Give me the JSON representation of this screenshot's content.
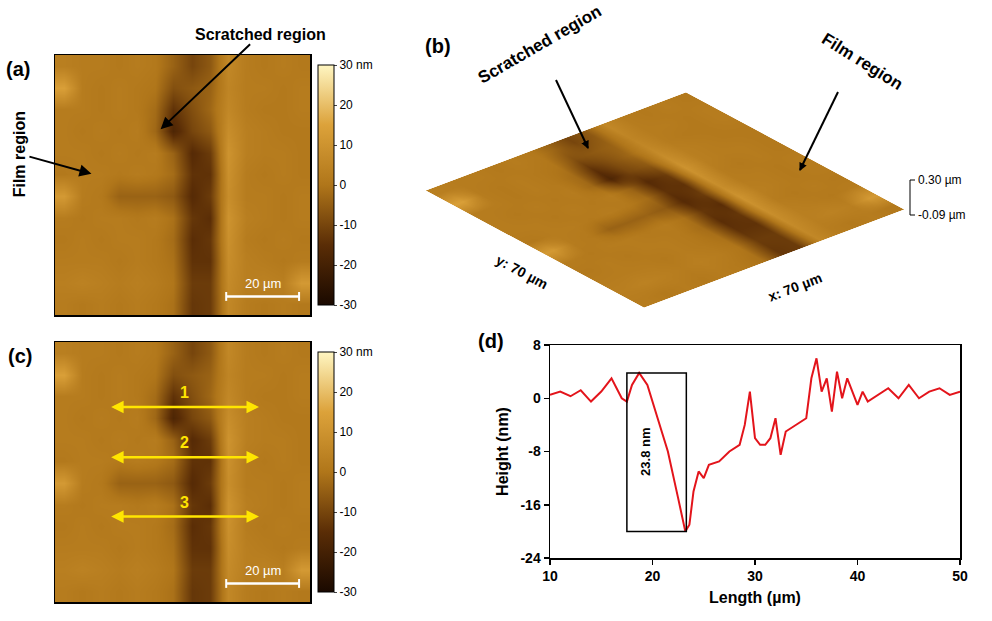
{
  "chart_data": [
    {
      "panel": "(a)",
      "type": "heatmap",
      "annotations": [
        "Scratched region",
        "Film region"
      ],
      "xlim": [
        0,
        70
      ],
      "ylim": [
        0,
        70
      ],
      "tick_labels": false,
      "zlim": [
        -30,
        30
      ],
      "zticks": [
        {
          "value": 30,
          "label": "30 nm"
        },
        20,
        10,
        0,
        -10,
        -20,
        -30
      ],
      "scale_bar": {
        "length": 20,
        "label": "20 µm"
      },
      "cells": [
        [
          3,
          2,
          2,
          1,
          2,
          1,
          -4,
          -10,
          -6,
          6,
          2,
          1,
          2,
          1
        ],
        [
          14,
          2,
          1,
          2,
          1,
          0,
          -8,
          -6,
          -4,
          5,
          2,
          2,
          1,
          2
        ],
        [
          2,
          2,
          1,
          2,
          1,
          -2,
          -14,
          -8,
          -3,
          6,
          2,
          1,
          1,
          2
        ],
        [
          2,
          1,
          2,
          1,
          2,
          -3,
          -18,
          -10,
          -6,
          8,
          3,
          2,
          1,
          1
        ],
        [
          2,
          2,
          1,
          2,
          1,
          2,
          -4,
          -16,
          -12,
          10,
          3,
          2,
          2,
          1
        ],
        [
          1,
          2,
          2,
          1,
          2,
          1,
          -2,
          -14,
          -14,
          9,
          2,
          1,
          2,
          1
        ],
        [
          12,
          2,
          1,
          -4,
          -4,
          -4,
          -6,
          -16,
          -12,
          8,
          2,
          2,
          1,
          2
        ],
        [
          2,
          1,
          2,
          2,
          1,
          2,
          -1,
          -13,
          -15,
          10,
          3,
          2,
          1,
          2
        ],
        [
          1,
          2,
          1,
          2,
          2,
          1,
          -2,
          -15,
          -13,
          9,
          2,
          1,
          2,
          1
        ],
        [
          2,
          2,
          2,
          1,
          2,
          1,
          -1,
          -14,
          -14,
          8,
          3,
          2,
          1,
          2
        ],
        [
          3,
          4,
          3,
          2,
          3,
          2,
          0,
          -12,
          -12,
          7,
          3,
          4,
          3,
          12
        ],
        [
          2,
          1,
          2,
          1,
          2,
          1,
          -1,
          -13,
          -12,
          6,
          2,
          1,
          2,
          1
        ]
      ]
    },
    {
      "panel": "(b)",
      "type": "surface",
      "annotations": [
        "Scratched region",
        "Film region"
      ],
      "x_label": "x: 70 µm",
      "y_label": "y: 70 µm",
      "color_range": [
        -30,
        30
      ],
      "zticks": [
        {
          "value": 0.3,
          "label": "0.30 µm"
        },
        {
          "value": -0.09,
          "label": "-0.09 µm"
        }
      ],
      "cells": [
        [
          3,
          2,
          2,
          1,
          2,
          1,
          -4,
          -10,
          -6,
          6,
          2,
          1,
          2,
          1
        ],
        [
          14,
          2,
          1,
          2,
          1,
          0,
          -8,
          -6,
          -4,
          5,
          2,
          2,
          1,
          2
        ],
        [
          2,
          2,
          1,
          2,
          1,
          -2,
          -14,
          -8,
          -3,
          6,
          2,
          1,
          1,
          2
        ],
        [
          2,
          1,
          2,
          1,
          2,
          -3,
          -18,
          -10,
          -6,
          8,
          3,
          2,
          1,
          1
        ],
        [
          2,
          2,
          1,
          2,
          1,
          2,
          -4,
          -16,
          -12,
          10,
          3,
          2,
          2,
          1
        ],
        [
          1,
          2,
          2,
          1,
          2,
          1,
          -2,
          -14,
          -14,
          9,
          2,
          1,
          2,
          1
        ],
        [
          12,
          2,
          1,
          -4,
          -4,
          -4,
          -6,
          -16,
          -12,
          8,
          2,
          2,
          1,
          2
        ],
        [
          2,
          1,
          2,
          2,
          1,
          2,
          -1,
          -13,
          -15,
          10,
          3,
          2,
          1,
          2
        ],
        [
          1,
          2,
          1,
          2,
          2,
          1,
          -2,
          -15,
          -13,
          9,
          2,
          1,
          2,
          1
        ],
        [
          2,
          2,
          2,
          1,
          2,
          1,
          -1,
          -14,
          -14,
          8,
          3,
          2,
          1,
          2
        ],
        [
          3,
          4,
          3,
          2,
          3,
          2,
          0,
          -12,
          -12,
          7,
          3,
          4,
          3,
          12
        ],
        [
          2,
          1,
          2,
          1,
          2,
          1,
          -1,
          -13,
          -12,
          6,
          2,
          1,
          2,
          1
        ]
      ]
    },
    {
      "panel": "(c)",
      "type": "heatmap",
      "xlim": [
        0,
        70
      ],
      "ylim": [
        0,
        70
      ],
      "tick_labels": false,
      "zlim": [
        -30,
        30
      ],
      "zticks": [
        {
          "value": 30,
          "label": "30 nm"
        },
        20,
        10,
        0,
        -10,
        -20,
        -30
      ],
      "scale_bar": {
        "length": 20,
        "label": "20 µm"
      },
      "profiles": [
        {
          "label": "1",
          "x": [
            15,
            56
          ],
          "y": 52.5
        },
        {
          "label": "2",
          "x": [
            15,
            56
          ],
          "y": 39
        },
        {
          "label": "3",
          "x": [
            15,
            56
          ],
          "y": 23
        }
      ],
      "cells": [
        [
          3,
          2,
          2,
          1,
          2,
          1,
          -4,
          -10,
          -6,
          6,
          2,
          1,
          2,
          1
        ],
        [
          14,
          2,
          1,
          2,
          1,
          0,
          -8,
          -6,
          -4,
          5,
          2,
          2,
          1,
          2
        ],
        [
          2,
          2,
          1,
          2,
          1,
          -2,
          -14,
          -8,
          -3,
          6,
          2,
          1,
          1,
          2
        ],
        [
          2,
          1,
          2,
          1,
          2,
          -3,
          -18,
          -10,
          -6,
          8,
          3,
          2,
          1,
          1
        ],
        [
          2,
          2,
          1,
          2,
          1,
          2,
          -4,
          -16,
          -12,
          10,
          3,
          2,
          2,
          1
        ],
        [
          1,
          2,
          2,
          1,
          2,
          1,
          -2,
          -14,
          -14,
          9,
          2,
          1,
          2,
          1
        ],
        [
          12,
          2,
          1,
          -4,
          -4,
          -4,
          -6,
          -16,
          -12,
          8,
          2,
          2,
          1,
          2
        ],
        [
          2,
          1,
          2,
          2,
          1,
          2,
          -1,
          -13,
          -15,
          10,
          3,
          2,
          1,
          2
        ],
        [
          1,
          2,
          1,
          2,
          2,
          1,
          -2,
          -15,
          -13,
          9,
          2,
          1,
          2,
          1
        ],
        [
          2,
          2,
          2,
          1,
          2,
          1,
          -1,
          -14,
          -14,
          8,
          3,
          2,
          1,
          2
        ],
        [
          3,
          4,
          3,
          2,
          3,
          2,
          0,
          -12,
          -12,
          7,
          3,
          4,
          3,
          12
        ],
        [
          2,
          1,
          2,
          1,
          2,
          1,
          -1,
          -13,
          -12,
          6,
          2,
          1,
          2,
          1
        ]
      ]
    },
    {
      "panel": "(d)",
      "type": "line",
      "color": "#e3141b",
      "xlabel": "Length (µm)",
      "ylabel": "Height (nm)",
      "xlim": [
        10,
        50
      ],
      "xticks": [
        10,
        20,
        30,
        40,
        50
      ],
      "ylim": [
        -24,
        8
      ],
      "yticks": [
        -24,
        -16,
        -8,
        0,
        8
      ],
      "grid": false,
      "x": [
        10,
        11,
        12,
        13,
        14,
        15,
        16,
        17,
        17.5,
        18,
        18.7,
        19.5,
        20.5,
        21.5,
        22.5,
        23.2,
        23.6,
        24,
        24.5,
        25,
        25.5,
        26.5,
        27.5,
        28.5,
        29,
        29.5,
        30,
        30.5,
        31,
        31.5,
        32,
        32.5,
        33,
        34,
        35,
        35.5,
        36,
        36.5,
        37,
        37.5,
        38,
        38.5,
        39,
        40,
        40.5,
        41,
        42,
        43,
        44,
        45,
        46,
        47,
        48,
        49,
        50
      ],
      "values": [
        0.5,
        1,
        0.3,
        1.2,
        -0.5,
        1,
        3,
        0,
        -0.5,
        2,
        3.8,
        2,
        -3,
        -8,
        -15,
        -20,
        -19,
        -14,
        -11,
        -12,
        -10,
        -9.5,
        -8,
        -7,
        -4,
        1,
        -6,
        -7,
        -7,
        -6,
        -3,
        -8.5,
        -5,
        -4,
        -3,
        3,
        6,
        1,
        3,
        -2,
        4,
        0,
        3,
        -1,
        1,
        -0.5,
        0.5,
        1.5,
        0,
        2,
        0,
        1,
        1.5,
        0.5,
        1
      ],
      "bracket": {
        "x": [
          17.5,
          23.3
        ],
        "y": [
          -20,
          3.8
        ],
        "label": "23.8 nm"
      }
    }
  ]
}
